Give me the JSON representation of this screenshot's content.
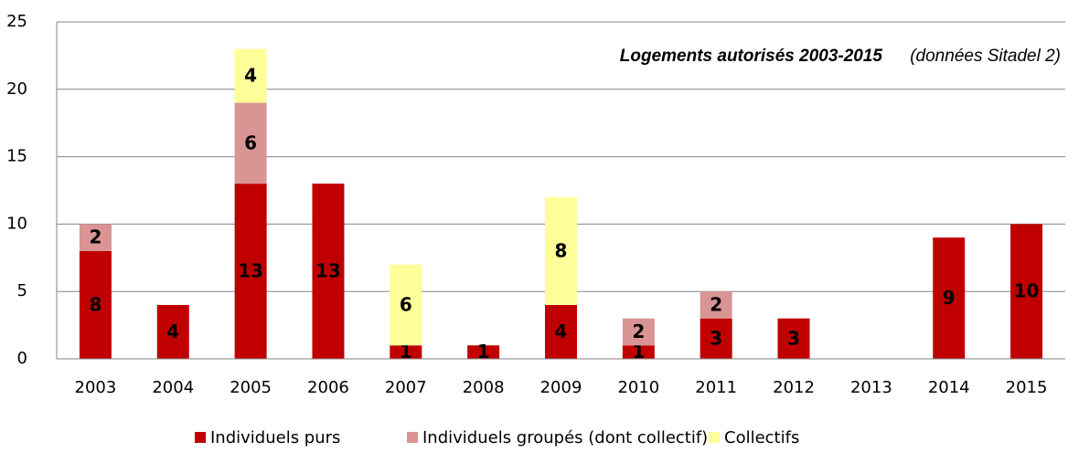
{
  "chart_data": {
    "type": "stacked_bar",
    "title": "Logements autorisés 2003-2015",
    "subtitle": "(données Sitadel 2)",
    "categories": [
      "2003",
      "2004",
      "2005",
      "2006",
      "2007",
      "2008",
      "2009",
      "2010",
      "2011",
      "2012",
      "2013",
      "2014",
      "2015"
    ],
    "series": [
      {
        "name": "Individuels purs",
        "color": "#c00000",
        "values": [
          8,
          4,
          13,
          13,
          1,
          1,
          4,
          1,
          3,
          3,
          null,
          9,
          10
        ]
      },
      {
        "name": "Individuels groupés (dont collectif)",
        "color": "#d99594",
        "values": [
          2,
          null,
          6,
          null,
          null,
          null,
          null,
          2,
          2,
          null,
          null,
          null,
          null
        ]
      },
      {
        "name": "Collectifs",
        "color": "#ffff99",
        "values": [
          null,
          null,
          4,
          null,
          6,
          null,
          8,
          null,
          null,
          null,
          null,
          null,
          null
        ]
      }
    ],
    "ylim": [
      0,
      25
    ],
    "yticks": [
      0,
      5,
      10,
      15,
      20,
      25
    ],
    "grid": true,
    "legend": "bottom"
  }
}
